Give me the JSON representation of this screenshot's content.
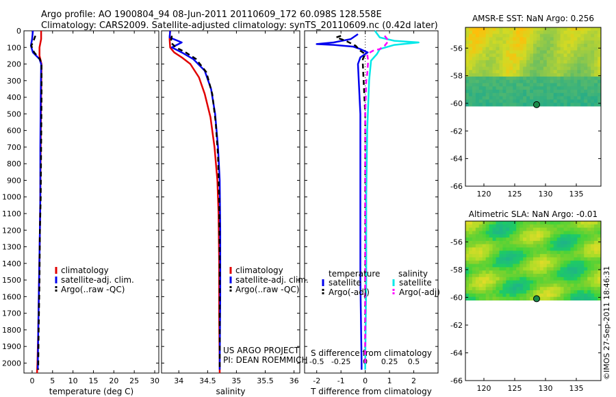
{
  "header": {
    "line1": "Argo profile: AO 1900804_94 08-Jun-2011 20110609_172 60.098S 128.558E",
    "line2": "Climatology: CARS2009. Satellite-adjusted climatology: synTS_20110609.nc (0.42d later)"
  },
  "colors": {
    "climatology": "#e00000",
    "satellite": "#0000ee",
    "argo": "#000000",
    "sal_satellite": "#00e8e8",
    "sal_argo": "#ff00ff"
  },
  "chart_data": [
    {
      "type": "line",
      "id": "temperature",
      "xlabel": "temperature (deg C)",
      "xlim": [
        -2,
        31
      ],
      "xticks": [
        0,
        5,
        10,
        15,
        20,
        25,
        30
      ],
      "ylim": [
        2060,
        0
      ],
      "yticks": [
        0,
        100,
        200,
        300,
        400,
        500,
        600,
        700,
        800,
        900,
        1000,
        1100,
        1200,
        1300,
        1400,
        1500,
        1600,
        1700,
        1800,
        1900,
        2000
      ],
      "legend": [
        "climatology",
        "satellite-adj. clim.",
        "Argo(..raw -QC)"
      ],
      "series": [
        {
          "name": "climatology",
          "style": "solid",
          "points": [
            [
              2.2,
              0
            ],
            [
              2.2,
              50
            ],
            [
              1.8,
              100
            ],
            [
              1.8,
              150
            ],
            [
              2.3,
              200
            ],
            [
              2.2,
              400
            ],
            [
              2.1,
              700
            ],
            [
              2.0,
              1000
            ],
            [
              1.9,
              1200
            ],
            [
              1.7,
              1500
            ],
            [
              1.5,
              1800
            ],
            [
              1.3,
              2000
            ],
            [
              1.2,
              2060
            ]
          ]
        },
        {
          "name": "satellite-adj. clim.",
          "style": "solid",
          "points": [
            [
              0.2,
              0
            ],
            [
              0.0,
              50
            ],
            [
              -0.3,
              90
            ],
            [
              0.2,
              130
            ],
            [
              1.8,
              170
            ],
            [
              2.2,
              200
            ],
            [
              2.1,
              400
            ],
            [
              2.0,
              700
            ],
            [
              2.0,
              1000
            ],
            [
              1.9,
              1200
            ],
            [
              1.7,
              1500
            ],
            [
              1.5,
              1800
            ],
            [
              1.4,
              2000
            ],
            [
              1.4,
              2040
            ]
          ]
        },
        {
          "name": "Argo(..raw -QC)",
          "style": "dashed",
          "points": [
            [
              0.8,
              30
            ],
            [
              0.2,
              70
            ],
            [
              -0.2,
              90
            ],
            [
              0.5,
              130
            ],
            [
              1.9,
              170
            ],
            [
              2.3,
              200
            ],
            [
              2.3,
              400
            ],
            [
              2.2,
              700
            ],
            [
              2.1,
              1000
            ],
            [
              1.9,
              1200
            ],
            [
              1.8,
              1500
            ],
            [
              1.6,
              1800
            ],
            [
              1.5,
              2000
            ],
            [
              1.5,
              2040
            ]
          ]
        }
      ]
    },
    {
      "type": "line",
      "id": "salinity",
      "xlabel": "salinity",
      "xlim": [
        33.7,
        36.1
      ],
      "xticks": [
        34,
        34.5,
        35,
        35.5,
        36
      ],
      "ylim": [
        2060,
        0
      ],
      "legend": [
        "climatology",
        "satellite-adj. clim.",
        "Argo(..raw -QC)"
      ],
      "annotation": [
        "US ARGO PROJECT",
        "PI: DEAN ROEMMICH"
      ],
      "series": [
        {
          "name": "climatology",
          "style": "solid",
          "points": [
            [
              33.85,
              0
            ],
            [
              33.84,
              50
            ],
            [
              33.85,
              100
            ],
            [
              33.92,
              130
            ],
            [
              34.05,
              160
            ],
            [
              34.2,
              200
            ],
            [
              34.35,
              280
            ],
            [
              34.45,
              380
            ],
            [
              34.55,
              520
            ],
            [
              34.62,
              700
            ],
            [
              34.67,
              900
            ],
            [
              34.69,
              1100
            ],
            [
              34.7,
              1400
            ],
            [
              34.7,
              1700
            ],
            [
              34.71,
              2060
            ]
          ]
        },
        {
          "name": "satellite-adj. clim.",
          "style": "solid",
          "points": [
            [
              33.85,
              0
            ],
            [
              33.84,
              40
            ],
            [
              34.05,
              70
            ],
            [
              33.88,
              100
            ],
            [
              34.05,
              130
            ],
            [
              34.25,
              170
            ],
            [
              34.45,
              240
            ],
            [
              34.56,
              350
            ],
            [
              34.63,
              500
            ],
            [
              34.68,
              700
            ],
            [
              34.71,
              900
            ],
            [
              34.72,
              1200
            ],
            [
              34.72,
              1600
            ],
            [
              34.71,
              2000
            ],
            [
              34.71,
              2040
            ]
          ]
        },
        {
          "name": "Argo(..raw -QC)",
          "style": "dashed",
          "points": [
            [
              33.88,
              30
            ],
            [
              33.86,
              70
            ],
            [
              33.95,
              100
            ],
            [
              34.12,
              130
            ],
            [
              34.3,
              170
            ],
            [
              34.48,
              250
            ],
            [
              34.58,
              380
            ],
            [
              34.64,
              550
            ],
            [
              34.68,
              750
            ],
            [
              34.7,
              1000
            ],
            [
              34.71,
              1400
            ],
            [
              34.71,
              1800
            ],
            [
              34.71,
              2040
            ]
          ]
        }
      ]
    },
    {
      "type": "line",
      "id": "differences",
      "xlabel": "T difference from climatology",
      "xlim": [
        -2.5,
        3
      ],
      "xticks": [
        -2,
        -1,
        0,
        1,
        2
      ],
      "x2label": "S difference from climatology",
      "x2ticks": [
        -0.5,
        -0.25,
        0,
        0.25,
        0.5
      ],
      "x2tick_labels": [
        "-0.5",
        "-0.25",
        "0",
        "0.25",
        "0.5"
      ],
      "x2lim": [
        -0.625,
        0.75
      ],
      "ylim": [
        2060,
        0
      ],
      "legend_titles": [
        "temperature",
        "salinity"
      ],
      "legend": [
        "satellite",
        "Argo(-adj)",
        "satellite",
        "Argo(-adj)"
      ],
      "series": [
        {
          "name": "satellite",
          "group": "temperature",
          "style": "solid",
          "points": [
            [
              -0.3,
              20
            ],
            [
              -0.6,
              50
            ],
            [
              -1.3,
              70
            ],
            [
              -2.0,
              80
            ],
            [
              -1.3,
              85
            ],
            [
              -0.5,
              95
            ],
            [
              -0.2,
              110
            ],
            [
              0.1,
              130
            ],
            [
              -0.2,
              160
            ],
            [
              -0.3,
              200
            ],
            [
              -0.2,
              500
            ],
            [
              -0.2,
              1000
            ],
            [
              -0.2,
              1500
            ],
            [
              -0.15,
              2000
            ],
            [
              -0.15,
              2040
            ]
          ]
        },
        {
          "name": "Argo(-adj)",
          "group": "temperature",
          "style": "dashed",
          "points": [
            [
              -1.0,
              30
            ],
            [
              -1.2,
              40
            ],
            [
              -0.8,
              60
            ],
            [
              -0.4,
              90
            ],
            [
              -0.2,
              120
            ],
            [
              0.0,
              140
            ],
            [
              -0.1,
              170
            ],
            [
              -0.1,
              200
            ],
            [
              0.0,
              500
            ],
            [
              0.0,
              1000
            ],
            [
              0.0,
              1500
            ],
            [
              0.0,
              2000
            ]
          ]
        },
        {
          "name": "satellite",
          "group": "salinity",
          "style": "solid",
          "points": [
            [
              0.1,
              0
            ],
            [
              0.15,
              40
            ],
            [
              0.3,
              60
            ],
            [
              0.55,
              70
            ],
            [
              0.3,
              85
            ],
            [
              0.15,
              110
            ],
            [
              0.12,
              140
            ],
            [
              0.06,
              180
            ],
            [
              0.04,
              300
            ],
            [
              0.02,
              600
            ],
            [
              0.01,
              1000
            ],
            [
              0.01,
              1500
            ],
            [
              0.0,
              2000
            ],
            [
              0.0,
              2040
            ]
          ]
        },
        {
          "name": "Argo(-adj)",
          "group": "salinity",
          "style": "dashed",
          "points": [
            [
              0.2,
              30
            ],
            [
              0.24,
              60
            ],
            [
              0.2,
              90
            ],
            [
              0.15,
              110
            ],
            [
              0.08,
              120
            ],
            [
              0.02,
              140
            ],
            [
              0.03,
              180
            ],
            [
              0.02,
              260
            ],
            [
              0.01,
              300
            ],
            [
              0.0,
              500
            ],
            [
              0.0,
              1000
            ],
            [
              0.0,
              2000
            ]
          ]
        }
      ]
    },
    {
      "type": "heatmap",
      "id": "sst",
      "title": "AMSR-E SST: NaN Argo: 0.256",
      "xlim": [
        117,
        139
      ],
      "ylim": [
        -66,
        -54.5
      ],
      "xticks": [
        120,
        125,
        130,
        135
      ],
      "yticks": [
        -56,
        -58,
        -60,
        -62,
        -64,
        -66
      ],
      "data_ylim": [
        -60.2,
        -54.5
      ],
      "marker": {
        "lon": 128.558,
        "lat": -60.098
      },
      "color_scale": "sst"
    },
    {
      "type": "heatmap",
      "id": "sla",
      "title": "Altimetric SLA: NaN Argo: -0.01",
      "xlim": [
        117,
        139
      ],
      "ylim": [
        -66,
        -54.5
      ],
      "xticks": [
        120,
        125,
        130,
        135
      ],
      "yticks": [
        -56,
        -58,
        -60,
        -62,
        -64,
        -66
      ],
      "data_ylim": [
        -60.2,
        -54.5
      ],
      "marker": {
        "lon": 128.558,
        "lat": -60.098
      },
      "color_scale": "sla"
    }
  ],
  "footer": {
    "stamp": "©IMOS 27-Sep-2011 18:46:31"
  }
}
